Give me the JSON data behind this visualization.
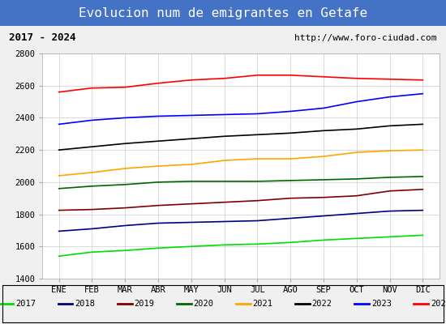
{
  "title": "Evolucion num de emigrantes en Getafe",
  "subtitle_left": "2017 - 2024",
  "subtitle_right": "http://www.foro-ciudad.com",
  "title_bg_color": "#4472c4",
  "title_text_color": "#ffffff",
  "ylim": [
    1400,
    2800
  ],
  "yticks": [
    1400,
    1600,
    1800,
    2000,
    2200,
    2400,
    2600,
    2800
  ],
  "months": [
    "ENE",
    "FEB",
    "MAR",
    "ABR",
    "MAY",
    "JUN",
    "JUL",
    "AGO",
    "SEP",
    "OCT",
    "NOV",
    "DIC"
  ],
  "series": {
    "2017": {
      "color": "#00dd00",
      "data": [
        1540,
        1565,
        1575,
        1590,
        1600,
        1610,
        1615,
        1625,
        1640,
        1650,
        1660,
        1670
      ]
    },
    "2018": {
      "color": "#000080",
      "data": [
        1695,
        1710,
        1730,
        1745,
        1750,
        1755,
        1760,
        1775,
        1790,
        1805,
        1820,
        1825
      ]
    },
    "2019": {
      "color": "#800000",
      "data": [
        1825,
        1830,
        1840,
        1855,
        1865,
        1875,
        1885,
        1900,
        1905,
        1915,
        1945,
        1955
      ]
    },
    "2020": {
      "color": "#006600",
      "data": [
        1960,
        1975,
        1985,
        2000,
        2005,
        2005,
        2005,
        2010,
        2015,
        2020,
        2030,
        2035
      ]
    },
    "2021": {
      "color": "#ffa500",
      "data": [
        2040,
        2060,
        2085,
        2100,
        2110,
        2135,
        2145,
        2145,
        2160,
        2185,
        2195,
        2200
      ]
    },
    "2022": {
      "color": "#000000",
      "data": [
        2200,
        2220,
        2240,
        2255,
        2270,
        2285,
        2295,
        2305,
        2320,
        2330,
        2350,
        2360
      ]
    },
    "2023": {
      "color": "#0000ff",
      "data": [
        2360,
        2385,
        2400,
        2410,
        2415,
        2420,
        2425,
        2440,
        2460,
        2500,
        2530,
        2550
      ]
    },
    "2024": {
      "color": "#ff0000",
      "data": [
        2560,
        2585,
        2590,
        2615,
        2635,
        2645,
        2665,
        2665,
        2655,
        2645,
        2640,
        2635
      ]
    }
  },
  "background_color": "#f0f0f0",
  "plot_bg_color": "#ffffff",
  "grid_color": "#cccccc"
}
